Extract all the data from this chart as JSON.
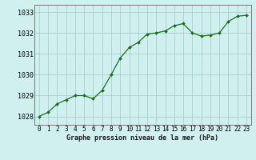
{
  "x": [
    0,
    1,
    2,
    3,
    4,
    5,
    6,
    7,
    8,
    9,
    10,
    11,
    12,
    13,
    14,
    15,
    16,
    17,
    18,
    19,
    20,
    21,
    22,
    23
  ],
  "y": [
    1028.0,
    1028.2,
    1028.6,
    1028.8,
    1029.0,
    1029.0,
    1028.85,
    1029.25,
    1030.0,
    1030.8,
    1031.3,
    1031.55,
    1031.95,
    1032.0,
    1032.1,
    1032.35,
    1032.45,
    1032.0,
    1031.85,
    1031.9,
    1032.0,
    1032.55,
    1032.8,
    1032.85
  ],
  "line_color": "#1a6e1a",
  "marker_color": "#1a6e1a",
  "bg_color": "#d0f0f0",
  "grid_color": "#aacfcf",
  "ylabel_ticks": [
    1028,
    1029,
    1030,
    1031,
    1032,
    1033
  ],
  "xlabel": "Graphe pression niveau de la mer (hPa)",
  "ylim_min": 1027.6,
  "ylim_max": 1033.35,
  "xlim_min": -0.5,
  "xlim_max": 23.5,
  "tick_fontsize": 5.5,
  "xlabel_fontsize": 6.0,
  "ytick_fontsize": 6.0
}
